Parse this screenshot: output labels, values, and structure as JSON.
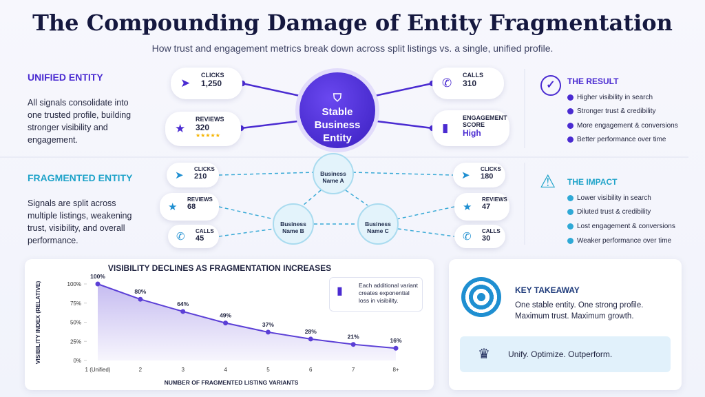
{
  "header": {
    "title": "The Compounding Damage of Entity Fragmentation",
    "subtitle": "How trust and engagement metrics break down across split listings vs. a single, unified profile."
  },
  "unified": {
    "heading": "UNIFIED ENTITY",
    "text": "All signals consolidate into one trusted profile, building stronger visibility and engagement.",
    "center": "Stable Business Entity",
    "cards": [
      {
        "label": "CLICKS",
        "value": "1,250"
      },
      {
        "label": "REVIEWS",
        "value": "320"
      },
      {
        "label": "CALLS",
        "value": "310"
      },
      {
        "label": "ENGAGEMENT SCORE",
        "value": "High"
      }
    ]
  },
  "fragmented": {
    "heading": "FRAGMENTED ENTITY",
    "text": "Signals are split across multiple listings, weakening trust, visibility, and overall performance.",
    "nodes": [
      "Business Name A",
      "Business Name B",
      "Business Name C"
    ],
    "cards": [
      {
        "label": "CLICKS",
        "value": "210"
      },
      {
        "label": "REVIEWS",
        "value": "68"
      },
      {
        "label": "CALLS",
        "value": "45"
      },
      {
        "label": "CLICKS",
        "value": "180"
      },
      {
        "label": "REVIEWS",
        "value": "47"
      },
      {
        "label": "CALLS",
        "value": "30"
      }
    ]
  },
  "result": {
    "heading": "THE RESULT",
    "items": [
      "Higher visibility in search",
      "Stronger trust & credibility",
      "More engagement & conversions",
      "Better performance over time"
    ]
  },
  "impact": {
    "heading": "THE IMPACT",
    "items": [
      "Lower visibility in search",
      "Diluted trust & credibility",
      "Lost engagement & conversions",
      "Weaker performance over time"
    ]
  },
  "chart_data": {
    "type": "line",
    "title": "VISIBILITY DECLINES AS FRAGMENTATION INCREASES",
    "y_label": "VISIBILITY INDEX (RELATIVE)",
    "x_label": "NUMBER OF FRAGMENTED LISTING VARIANTS",
    "annotation": "Each additional variant creates exponential loss in visibility.",
    "categories": [
      "1 (Unified)",
      "2",
      "3",
      "4",
      "5",
      "6",
      "7",
      "8+"
    ],
    "values": [
      100,
      80,
      64,
      49,
      37,
      28,
      21,
      16
    ],
    "value_labels": [
      "100%",
      "80%",
      "64%",
      "49%",
      "37%",
      "28%",
      "21%",
      "16%"
    ],
    "color": "#5b3fd6",
    "ylim": [
      0,
      100
    ],
    "yticks": [
      {
        "value": 0,
        "label": "0%"
      },
      {
        "value": 25,
        "label": "25%"
      },
      {
        "value": 50,
        "label": "50%"
      },
      {
        "value": 75,
        "label": "75%"
      },
      {
        "value": 100,
        "label": "100%"
      }
    ]
  },
  "takeaway": {
    "heading": "KEY TAKEAWAY",
    "text": "One stable entity. One strong profile. Maximum trust. Maximum growth.",
    "motto": "Unify. Optimize. Outperform."
  }
}
